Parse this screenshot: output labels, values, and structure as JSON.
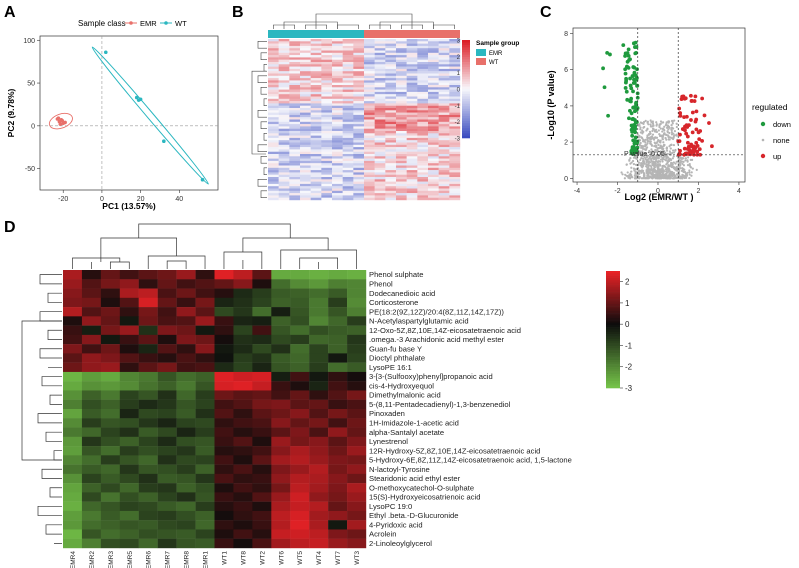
{
  "colors": {
    "emr": "#e8706a",
    "wt": "#2bb7c0",
    "down": "#1f9a3e",
    "none": "#b5b5b5",
    "up": "#d7262b"
  },
  "panels": {
    "a": {
      "letter": "A"
    },
    "b": {
      "letter": "B"
    },
    "c": {
      "letter": "C"
    },
    "d": {
      "letter": "D"
    }
  },
  "chart_data": [
    {
      "type": "scatter",
      "panel": "A",
      "legend_title": "Sample class",
      "legend_position": "top",
      "xlabel": "PC1 (13.57%)",
      "ylabel": "PC2 (9.78%)",
      "xlim": [
        -32,
        60
      ],
      "ylim": [
        -75,
        105
      ],
      "xticks": [
        "-20",
        "0",
        "20",
        "40"
      ],
      "yticks": [
        "100",
        "50",
        "0",
        "-50"
      ],
      "grid": false,
      "series": [
        {
          "name": "EMR",
          "x": [
            -23,
            -22,
            -21,
            -20,
            -19,
            -21.5,
            -20.5,
            -22.5
          ],
          "y": [
            8,
            5,
            7,
            3,
            4,
            2,
            6,
            9
          ]
        },
        {
          "name": "WT",
          "x": [
            2,
            18,
            19,
            32,
            52,
            20
          ],
          "y": [
            86,
            33,
            30,
            -18,
            -63,
            31
          ]
        }
      ]
    },
    {
      "type": "heatmap",
      "panel": "B",
      "legend_title": "Sample group",
      "groups": [
        "EMR",
        "WT"
      ],
      "color_scale": [
        -3,
        3
      ],
      "color_ticks": [
        "3",
        "2",
        "1",
        "0",
        "-1",
        "-2",
        "-3"
      ]
    },
    {
      "type": "scatter",
      "panel": "C",
      "legend_title": "regulated",
      "legend_position": "right",
      "xlabel": "Log2 (EMR/WT )",
      "ylabel": "-Log10 (P value)",
      "xlim": [
        -4.2,
        4.3
      ],
      "ylim": [
        -0.2,
        8.3
      ],
      "xticks": [
        "-4",
        "-2",
        "0",
        "2",
        "4"
      ],
      "yticks": [
        "0",
        "2",
        "4",
        "6",
        "8"
      ],
      "threshold_label": "P value: 0.05",
      "categories": [
        "down",
        "none",
        "up"
      ]
    },
    {
      "type": "heatmap",
      "panel": "D",
      "color_scale": [
        -3,
        2.5
      ],
      "color_ticks": [
        "2",
        "1",
        "0",
        "-1",
        "-2",
        "-3"
      ],
      "columns": [
        "EMR4",
        "EMR2",
        "EMR3",
        "EMR5",
        "EMR6",
        "EMR7",
        "EMR8",
        "EMR1",
        "WT1",
        "WT8",
        "WT2",
        "WT6",
        "WT5",
        "WT4",
        "WT7",
        "WT3"
      ],
      "rows": [
        "Phenol sulphate",
        "Phenol",
        "Dodecanedioic acid",
        "Corticosterone",
        "PE(18:2(9Z,12Z)/20:4(8Z,11Z,14Z,17Z))",
        "N-Acetylaspartylglutamic acid",
        "12-Oxo-5Z,8Z,10E,14Z-eicosatetraenoic acid",
        ".omega.-3 Arachidonic acid methyl ester",
        "Guan-fu base Y",
        "Dioctyl phthalate",
        "LysoPE 16:1",
        "3-[3-(Sulfooxy)phenyl]propanoic acid",
        "cis-4-Hydroxyequol",
        "Dimethylmalonic acid",
        "5-(8,11-Pentadecadienyl)-1,3-benzenediol",
        "Pinoxaden",
        "1H-Imidazole-1-acetic acid",
        "alpha-Santalyl acetate",
        "Lynestrenol",
        "12R-Hydroxy-5Z,8Z,10E,14Z-eicosatetraenoic acid",
        "5-Hydroxy-6E,8Z,11Z,14Z-eicosatetraenoic acid, 1,5-lactone",
        "N-lactoyl-Tyrosine",
        "Stearidonic acid ethyl ester",
        "O-methoxycatechol-O-sulphate",
        "15(S)-Hydroxyeicosatrienoic acid",
        "LysoPC 19:0",
        "Ethyl .beta.-D-Glucuronide",
        "4-Pyridoxic acid",
        "Acrolein",
        "2-Linoleoylglycerol"
      ],
      "values": [
        [
          1.8,
          0.3,
          1.0,
          0.6,
          0.9,
          1.1,
          1.6,
          0.4,
          2.4,
          2.0,
          0.9,
          -2.6,
          -2.6,
          -2.7,
          -2.6,
          -2.7
        ],
        [
          1.6,
          0.8,
          1.2,
          1.5,
          0.4,
          1.0,
          0.6,
          0.8,
          1.0,
          1.4,
          0.2,
          -1.6,
          -2.1,
          -2.3,
          -1.9,
          -2.0
        ],
        [
          1.4,
          0.9,
          0.4,
          1.8,
          2.0,
          0.7,
          1.1,
          0.6,
          0.3,
          -0.5,
          -0.8,
          -1.3,
          -1.4,
          -1.6,
          -1.3,
          -2.0
        ],
        [
          1.3,
          1.2,
          0.2,
          0.8,
          2.3,
          1.0,
          0.5,
          1.2,
          -0.4,
          -0.6,
          -0.9,
          -1.4,
          -1.3,
          -1.8,
          -0.8,
          -2.1
        ],
        [
          1.9,
          0.8,
          1.1,
          0.4,
          1.2,
          0.6,
          1.5,
          0.9,
          -1.0,
          -0.7,
          -1.6,
          -0.3,
          -1.2,
          -1.8,
          -1.2,
          -1.9
        ],
        [
          0.2,
          1.5,
          1.0,
          -0.2,
          1.1,
          0.7,
          0.8,
          1.6,
          0.5,
          -0.4,
          -0.3,
          -1.4,
          -1.1,
          -2.0,
          -1.5,
          -0.8
        ],
        [
          0.5,
          -0.3,
          1.2,
          1.6,
          -0.6,
          1.3,
          1.1,
          -0.2,
          0.4,
          -0.9,
          0.6,
          -1.2,
          -1.6,
          -1.1,
          -1.3,
          -1.4
        ],
        [
          0.6,
          1.4,
          -0.2,
          0.5,
          0.9,
          0.2,
          1.3,
          1.1,
          0.1,
          -0.6,
          -0.5,
          -1.0,
          -0.8,
          -1.5,
          -1.4,
          -0.7
        ],
        [
          1.3,
          0.6,
          1.1,
          0.2,
          -0.4,
          0.8,
          0.4,
          1.4,
          -0.2,
          -0.5,
          -1.0,
          -0.6,
          -1.6,
          -0.9,
          -1.4,
          -0.8
        ],
        [
          0.9,
          1.5,
          1.3,
          0.8,
          0.5,
          0.3,
          0.7,
          0.4,
          -0.1,
          -0.8,
          -0.6,
          -1.3,
          -1.5,
          -0.9,
          -0.2,
          -0.9
        ],
        [
          1.1,
          1.5,
          1.6,
          0.4,
          0.9,
          1.2,
          0.6,
          0.7,
          -0.5,
          -0.9,
          -0.4,
          -1.2,
          -1.4,
          -0.8,
          -1.6,
          -1.3
        ],
        [
          -2.8,
          -2.4,
          -2.6,
          -2.0,
          -1.8,
          -1.2,
          -1.6,
          -1.4,
          2.4,
          2.2,
          2.3,
          -0.3,
          0.6,
          -0.2,
          0.4,
          0.1
        ],
        [
          -2.6,
          -2.2,
          -2.3,
          -2.1,
          -1.7,
          -1.4,
          -1.8,
          -1.2,
          2.3,
          2.4,
          2.1,
          0.5,
          0.2,
          -0.4,
          0.6,
          0.3
        ],
        [
          -2.2,
          -1.4,
          -1.8,
          -0.9,
          -1.2,
          -0.6,
          -1.5,
          -0.8,
          1.1,
          0.9,
          1.0,
          0.6,
          1.0,
          0.4,
          0.8,
          1.2
        ],
        [
          -1.9,
          -1.1,
          -1.4,
          -0.8,
          -0.5,
          -0.7,
          -1.2,
          -0.9,
          0.6,
          0.8,
          1.2,
          1.3,
          0.9,
          1.0,
          0.5,
          0.7
        ],
        [
          -2.5,
          -1.3,
          -1.6,
          -0.4,
          -1.0,
          -0.9,
          -1.3,
          -0.6,
          0.8,
          0.4,
          0.9,
          1.1,
          1.4,
          0.8,
          1.2,
          0.9
        ],
        [
          -2.1,
          -0.8,
          -1.2,
          -1.1,
          -0.7,
          -0.4,
          -0.9,
          -1.0,
          0.4,
          0.6,
          0.7,
          1.4,
          1.0,
          1.2,
          0.6,
          1.1
        ],
        [
          -1.8,
          -1.5,
          -0.9,
          -0.6,
          -1.3,
          -1.0,
          -0.4,
          -0.8,
          0.6,
          0.3,
          0.5,
          0.9,
          1.3,
          0.7,
          1.5,
          1.0
        ],
        [
          -2.3,
          -0.7,
          -1.1,
          -1.4,
          -0.9,
          -0.5,
          -1.1,
          -1.2,
          0.5,
          0.8,
          0.2,
          1.6,
          1.2,
          1.4,
          0.9,
          1.3
        ],
        [
          -2.4,
          -1.2,
          -1.6,
          -0.8,
          -1.1,
          -0.9,
          -0.7,
          -1.3,
          0.3,
          0.4,
          0.6,
          1.4,
          1.8,
          1.5,
          1.1,
          1.6
        ],
        [
          -2.0,
          -1.6,
          -0.8,
          -1.2,
          -1.5,
          -0.6,
          -1.0,
          -0.9,
          0.6,
          0.2,
          0.9,
          1.7,
          1.9,
          1.6,
          1.3,
          1.2
        ],
        [
          -1.7,
          -1.3,
          -1.5,
          -0.7,
          -1.2,
          -1.1,
          -0.8,
          -1.4,
          0.4,
          0.7,
          0.3,
          1.3,
          1.6,
          1.9,
          1.2,
          1.5
        ],
        [
          -2.2,
          -0.9,
          -1.3,
          -1.0,
          -0.6,
          -1.3,
          -1.2,
          -0.7,
          0.7,
          0.4,
          0.5,
          1.5,
          1.9,
          1.8,
          1.4,
          1.1
        ],
        [
          -2.5,
          -1.4,
          -1.0,
          -1.5,
          -0.8,
          -0.7,
          -1.4,
          -1.1,
          0.2,
          0.6,
          0.4,
          1.2,
          2.0,
          1.7,
          1.3,
          1.8
        ],
        [
          -2.6,
          -1.0,
          -1.7,
          -1.1,
          -1.4,
          -0.9,
          -0.6,
          -1.2,
          0.5,
          0.3,
          0.8,
          1.6,
          2.2,
          1.5,
          1.2,
          1.6
        ],
        [
          -2.7,
          -1.5,
          -1.2,
          -0.9,
          -1.0,
          -1.3,
          -1.5,
          -0.8,
          0.3,
          0.5,
          0.2,
          1.8,
          2.1,
          1.9,
          1.0,
          1.4
        ],
        [
          -2.4,
          -1.8,
          -1.3,
          -1.6,
          -0.9,
          -0.8,
          -1.1,
          -1.4,
          0.1,
          0.4,
          0.6,
          2.0,
          2.3,
          1.7,
          1.5,
          1.2
        ],
        [
          -2.3,
          -1.6,
          -1.4,
          -1.2,
          -1.3,
          -1.0,
          -0.9,
          -1.5,
          0.4,
          0.2,
          0.5,
          1.9,
          2.4,
          1.8,
          -0.2,
          1.7
        ],
        [
          -2.8,
          -1.2,
          -1.6,
          -1.4,
          -1.1,
          -1.2,
          -1.3,
          -0.9,
          0.2,
          0.6,
          0.3,
          2.1,
          2.2,
          2.0,
          1.3,
          1.1
        ],
        [
          -2.6,
          -1.9,
          -1.1,
          -1.0,
          -1.5,
          -0.7,
          -1.2,
          -1.3,
          0.5,
          0.1,
          0.7,
          1.7,
          2.0,
          2.1,
          1.6,
          1.4
        ]
      ]
    }
  ]
}
